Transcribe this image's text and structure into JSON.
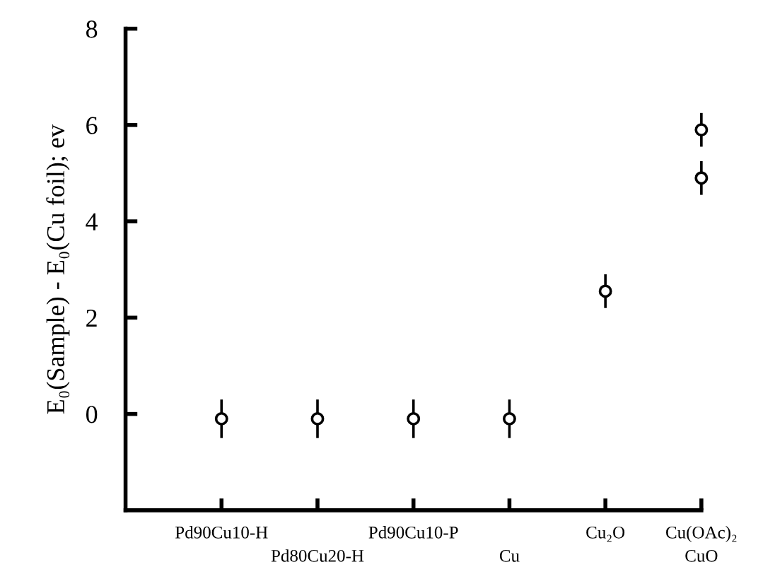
{
  "chart_data": {
    "type": "scatter",
    "ylabel": "E₀(Sample) - E₀(Cu foil); ev",
    "categories": [
      "Pd90Cu10-H",
      "Pd80Cu20-H",
      "Pd90Cu10-P",
      "Cu",
      "Cu₂O",
      "Cu(OAc)₂\nCuO"
    ],
    "series": [
      {
        "color": "#000000",
        "values": [
          -0.1,
          -0.1,
          -0.1,
          -0.1,
          2.55,
          4.9
        ],
        "errors": [
          0.4,
          0.4,
          0.4,
          0.4,
          0.35,
          0.35
        ]
      },
      {
        "color": "#000000",
        "values": [
          null,
          null,
          null,
          null,
          null,
          5.9
        ],
        "errors": [
          null,
          null,
          null,
          null,
          null,
          0.35
        ]
      }
    ],
    "ylim": [
      -2,
      8
    ],
    "yticks": [
      0,
      2,
      4,
      6,
      8
    ],
    "marker": "circle",
    "grid": false,
    "legend": false
  }
}
